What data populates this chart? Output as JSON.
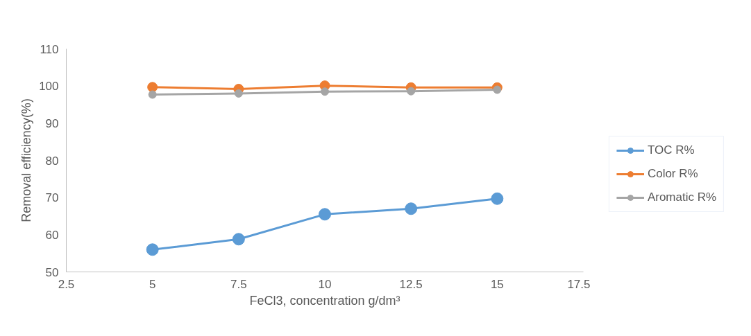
{
  "chart_data": {
    "type": "line",
    "xlabel": "FeCl3, concentration g/dm³",
    "ylabel": "Removal efficiency(%)",
    "x": [
      5,
      7.5,
      10,
      12.5,
      15
    ],
    "series": [
      {
        "name": "TOC R%",
        "color": "#5b9bd5",
        "values": [
          56.0,
          58.8,
          65.5,
          67.0,
          69.7
        ]
      },
      {
        "name": "Color R%",
        "color": "#ed7d31",
        "values": [
          99.7,
          99.2,
          100.1,
          99.6,
          99.6
        ]
      },
      {
        "name": "Aromatic R%",
        "color": "#a5a5a5",
        "values": [
          97.7,
          98.0,
          98.5,
          98.6,
          99.0
        ]
      }
    ],
    "xlim": [
      2.5,
      17.5
    ],
    "xticks": [
      2.5,
      5,
      7.5,
      10,
      12.5,
      15,
      17.5
    ],
    "ylim": [
      50,
      110
    ],
    "yticks": [
      50,
      60,
      70,
      80,
      90,
      100,
      110
    ],
    "grid": false,
    "legend": "right",
    "marker": "circle",
    "line_style": "solid"
  }
}
